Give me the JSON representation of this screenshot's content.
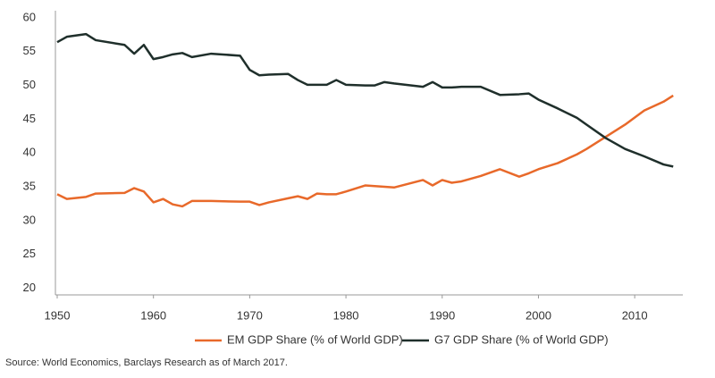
{
  "chart_data": {
    "type": "line",
    "x": [
      1950,
      1951,
      1953,
      1954,
      1957,
      1958,
      1959,
      1960,
      1961,
      1962,
      1963,
      1964,
      1966,
      1969,
      1970,
      1971,
      1972,
      1974,
      1975,
      1976,
      1977,
      1978,
      1979,
      1980,
      1982,
      1983,
      1984,
      1985,
      1988,
      1989,
      1990,
      1991,
      1992,
      1994,
      1996,
      1998,
      1999,
      2000,
      2002,
      2004,
      2005,
      2007,
      2009,
      2011,
      2013,
      2014
    ],
    "series": [
      {
        "name": "EM GDP Share (% of World GDP)",
        "color": "#e8692a",
        "values": [
          33.9,
          33.2,
          33.5,
          34.0,
          34.1,
          34.8,
          34.3,
          32.7,
          33.2,
          32.4,
          32.1,
          32.9,
          32.9,
          32.8,
          32.8,
          32.3,
          32.7,
          33.3,
          33.6,
          33.2,
          34.0,
          33.9,
          33.9,
          34.3,
          35.2,
          35.1,
          35.0,
          34.9,
          36.0,
          35.2,
          36.0,
          35.6,
          35.8,
          36.6,
          37.6,
          36.5,
          37.0,
          37.6,
          38.5,
          39.8,
          40.6,
          42.4,
          44.2,
          46.3,
          47.6,
          48.5
        ]
      },
      {
        "name": "G7 GDP Share (% of World GDP)",
        "color": "#1f2f2b",
        "values": [
          56.4,
          57.2,
          57.6,
          56.7,
          56.0,
          54.7,
          56.0,
          53.9,
          54.2,
          54.6,
          54.8,
          54.2,
          54.7,
          54.4,
          52.3,
          51.5,
          51.6,
          51.7,
          50.8,
          50.1,
          50.1,
          50.1,
          50.8,
          50.1,
          50.0,
          50.0,
          50.5,
          50.3,
          49.8,
          50.5,
          49.7,
          49.7,
          49.8,
          49.8,
          48.6,
          48.7,
          48.8,
          47.9,
          46.6,
          45.2,
          44.2,
          42.2,
          40.6,
          39.5,
          38.3,
          38.0
        ]
      }
    ],
    "xlim": [
      1950,
      2015
    ],
    "xticks": [
      1950,
      1960,
      1970,
      1980,
      1990,
      2000,
      2010
    ],
    "ylim": [
      19,
      60
    ],
    "yticks": [
      20,
      25,
      30,
      35,
      40,
      45,
      50,
      55,
      60
    ],
    "legend": "bottom",
    "source": "Source: World Economics, Barclays Research as of March 2017."
  }
}
